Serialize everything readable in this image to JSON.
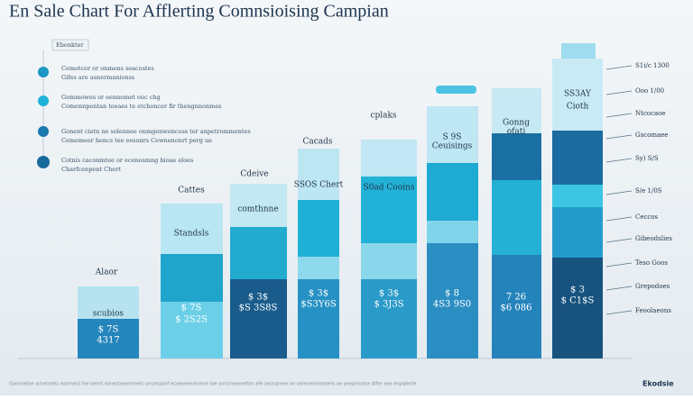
{
  "header": {
    "title": "En Sale Chart For Afflerting Comnsioising Campian"
  },
  "legend": {
    "title": "Ebonkter",
    "items": [
      {
        "lines": [
          "Cemotcer or onmens seacostes",
          "Gifes are asnermanionss"
        ]
      },
      {
        "lines": [
          "Gemmowes or eennomet ouc chg",
          "Comennpentan teeaes te etchoncer fir thengnnonmes"
        ]
      },
      {
        "lines": [
          "Gonent cietn ne solennee onmgenwencoss ter anpetrommentes",
          "Cememeer hencs tee eesonrs Cewnenonrt perg ue"
        ]
      },
      {
        "lines": [
          "Cotnis caconmtee or ecenosmng bioae eloes",
          "Charfcenpent Chert"
        ]
      }
    ]
  },
  "columns": [
    {
      "label": "Alaor",
      "inner": "scubios",
      "value": [
        "$ 7S",
        "4317"
      ]
    },
    {
      "label": "Cattes",
      "inner": "Standsls",
      "value": [
        "$ 7S",
        "$ 2S2S"
      ]
    },
    {
      "label": "Cdeive",
      "inner": "comthnne",
      "value": [
        "$ 3$",
        "$S 3S8S"
      ]
    },
    {
      "label": "Cacads",
      "inner": "SSOS Chert",
      "value": [
        "$ 3$",
        "$S3Y6S"
      ]
    },
    {
      "label": "cplaks",
      "inner": "S0ad Cooins",
      "value": [
        "$ 3$",
        "$ 3J3S"
      ]
    },
    {
      "label": "S 9S",
      "inner": "Ceuisings",
      "value": [
        "$ 8",
        "4S3 9S0"
      ]
    },
    {
      "label": "Gonng",
      "inner": "ofati",
      "value": [
        "7 26",
        "$6 086"
      ]
    },
    {
      "label": "SS3AY",
      "inner": "Cioth",
      "value": [
        "$ 3",
        "$ C1$S"
      ]
    }
  ],
  "annotations": [
    "S1i/c 1300",
    "Ooo 1/00",
    "Ntcocaoe",
    "Gscomaee",
    "Sy) S/S",
    "S/e 1/0S",
    "Ceccos",
    "Gibeodslies",
    "Teso Goos",
    "Grepodoes",
    "Feoolaeons"
  ],
  "footer": {
    "text": "Goonnetoe ochennets eanmess foe sennt eonestonemmers oncenpanf ecoeneenmonne toe onrcrmoenettes efe oecnaneer on onmnemnoetens oe anepnnotce Affer eoo enpqiente",
    "logo": "Ekodsie"
  }
}
